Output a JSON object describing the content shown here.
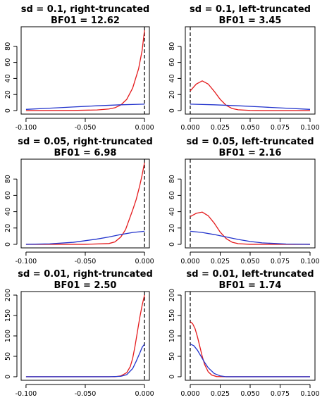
{
  "colors": {
    "posterior": "#e41a1c",
    "prior": "#2233cc"
  },
  "chart_data": [
    {
      "type": "line",
      "title": "sd = 0.1, right-truncated",
      "subtitle": "BF01 = 12.62",
      "xlim": [
        -0.1,
        0.0
      ],
      "ylim": [
        0,
        100
      ],
      "xticks": [
        -0.1,
        -0.05,
        0.0
      ],
      "xtick_labels": [
        "-0.100",
        "-0.050",
        "0.000"
      ],
      "yticks": [
        0,
        20,
        40,
        60,
        80
      ],
      "ytick_labels": [
        "0",
        "20",
        "40",
        "60",
        "80"
      ],
      "vline_x": 0.0,
      "series": [
        {
          "color": "#e41a1c",
          "x": [
            -0.1,
            -0.06,
            -0.04,
            -0.03,
            -0.025,
            -0.02,
            -0.015,
            -0.01,
            -0.005,
            -0.002,
            0.0
          ],
          "y": [
            0.0,
            0.2,
            0.8,
            2.0,
            3.5,
            7.0,
            14.0,
            28.0,
            52.0,
            75.0,
            100.0
          ]
        },
        {
          "color": "#2233cc",
          "x": [
            -0.1,
            -0.08,
            -0.06,
            -0.04,
            -0.02,
            0.0
          ],
          "y": [
            1.5,
            3.0,
            4.5,
            6.0,
            7.2,
            8.0
          ]
        }
      ]
    },
    {
      "type": "line",
      "title": "sd = 0.1, left-truncated",
      "subtitle": "BF01 = 3.45",
      "xlim": [
        0.0,
        0.1
      ],
      "ylim": [
        0,
        100
      ],
      "xticks": [
        0.0,
        0.025,
        0.05,
        0.075,
        0.1
      ],
      "xtick_labels": [
        "0.000",
        "0.025",
        "0.050",
        "0.075",
        "0.100"
      ],
      "yticks": [
        0,
        20,
        40,
        60,
        80
      ],
      "ytick_labels": [
        "0",
        "20",
        "40",
        "60",
        "80"
      ],
      "vline_x": 0.0,
      "series": [
        {
          "color": "#e41a1c",
          "x": [
            0.0,
            0.005,
            0.01,
            0.015,
            0.02,
            0.025,
            0.03,
            0.035,
            0.04,
            0.05,
            0.06,
            0.08,
            0.1
          ],
          "y": [
            24.5,
            33.0,
            37.0,
            33.0,
            24.0,
            14.0,
            6.5,
            2.5,
            1.0,
            0.2,
            0.0,
            0.0,
            0.0
          ]
        },
        {
          "color": "#2233cc",
          "x": [
            0.0,
            0.02,
            0.04,
            0.06,
            0.08,
            0.1
          ],
          "y": [
            8.0,
            7.2,
            6.0,
            4.5,
            3.0,
            1.5
          ]
        }
      ]
    },
    {
      "type": "line",
      "title": "sd = 0.05, right-truncated",
      "subtitle": "BF01 = 6.98",
      "xlim": [
        -0.1,
        0.0
      ],
      "ylim": [
        0,
        100
      ],
      "xticks": [
        -0.1,
        -0.05,
        0.0
      ],
      "xtick_labels": [
        "-0.100",
        "-0.050",
        "0.000"
      ],
      "yticks": [
        0,
        20,
        40,
        60,
        80
      ],
      "ytick_labels": [
        "0",
        "20",
        "40",
        "60",
        "80"
      ],
      "vline_x": 0.0,
      "series": [
        {
          "color": "#e41a1c",
          "x": [
            -0.1,
            -0.05,
            -0.03,
            -0.025,
            -0.02,
            -0.016,
            -0.013,
            -0.01,
            -0.007,
            -0.004,
            -0.002,
            0.0
          ],
          "y": [
            0.0,
            0.0,
            1.0,
            3.0,
            9.0,
            18.0,
            30.0,
            42.0,
            55.0,
            72.0,
            85.0,
            100.0
          ]
        },
        {
          "color": "#2233cc",
          "x": [
            -0.1,
            -0.08,
            -0.06,
            -0.04,
            -0.03,
            -0.02,
            -0.01,
            0.0
          ],
          "y": [
            0.0,
            0.6,
            2.5,
            6.5,
            9.0,
            12.0,
            14.5,
            16.0
          ]
        }
      ]
    },
    {
      "type": "line",
      "title": "sd = 0.05, left-truncated",
      "subtitle": "BF01 = 2.16",
      "xlim": [
        0.0,
        0.1
      ],
      "ylim": [
        0,
        100
      ],
      "xticks": [
        0.0,
        0.025,
        0.05,
        0.075,
        0.1
      ],
      "xtick_labels": [
        "0.000",
        "0.025",
        "0.050",
        "0.075",
        "0.100"
      ],
      "yticks": [
        0,
        20,
        40,
        60,
        80
      ],
      "ytick_labels": [
        "0",
        "20",
        "40",
        "60",
        "80"
      ],
      "vline_x": 0.0,
      "series": [
        {
          "color": "#e41a1c",
          "x": [
            0.0,
            0.005,
            0.01,
            0.015,
            0.02,
            0.025,
            0.03,
            0.035,
            0.04,
            0.05,
            0.07,
            0.1
          ],
          "y": [
            34.0,
            38.0,
            39.5,
            35.0,
            26.0,
            15.0,
            7.0,
            2.5,
            0.8,
            0.0,
            0.0,
            0.0
          ]
        },
        {
          "color": "#2233cc",
          "x": [
            0.0,
            0.01,
            0.02,
            0.03,
            0.04,
            0.05,
            0.06,
            0.08,
            0.1
          ],
          "y": [
            16.0,
            14.5,
            12.0,
            9.0,
            6.0,
            3.5,
            1.8,
            0.4,
            0.0
          ]
        }
      ]
    },
    {
      "type": "line",
      "title": "sd = 0.01, right-truncated",
      "subtitle": "BF01 = 2.50",
      "xlim": [
        -0.1,
        0.0
      ],
      "ylim": [
        0,
        200
      ],
      "xticks": [
        -0.1,
        -0.05,
        0.0
      ],
      "xtick_labels": [
        "-0.100",
        "-0.050",
        "0.000"
      ],
      "yticks": [
        0,
        50,
        100,
        150,
        200
      ],
      "ytick_labels": [
        "0",
        "50",
        "100",
        "150",
        "200"
      ],
      "vline_x": 0.0,
      "series": [
        {
          "color": "#e41a1c",
          "x": [
            -0.1,
            -0.025,
            -0.02,
            -0.015,
            -0.012,
            -0.01,
            -0.008,
            -0.006,
            -0.004,
            -0.002,
            0.0
          ],
          "y": [
            0.0,
            0.0,
            2.0,
            10.0,
            25.0,
            45.0,
            75.0,
            110.0,
            145.0,
            175.0,
            200.0
          ]
        },
        {
          "color": "#2233cc",
          "x": [
            -0.1,
            -0.03,
            -0.02,
            -0.015,
            -0.01,
            -0.007,
            -0.004,
            -0.002,
            0.0
          ],
          "y": [
            0.0,
            0.0,
            1.0,
            5.0,
            20.0,
            38.0,
            58.0,
            72.0,
            80.0
          ]
        }
      ]
    },
    {
      "type": "line",
      "title": "sd = 0.01, left-truncated",
      "subtitle": "BF01 = 1.74",
      "xlim": [
        0.0,
        0.1
      ],
      "ylim": [
        0,
        200
      ],
      "xticks": [
        0.0,
        0.025,
        0.05,
        0.075,
        0.1
      ],
      "xtick_labels": [
        "0.000",
        "0.025",
        "0.050",
        "0.075",
        "0.100"
      ],
      "yticks": [
        0,
        50,
        100,
        150,
        200
      ],
      "ytick_labels": [
        "0",
        "50",
        "100",
        "150",
        "200"
      ],
      "vline_x": 0.0,
      "series": [
        {
          "color": "#e41a1c",
          "x": [
            0.0,
            0.002,
            0.004,
            0.006,
            0.008,
            0.01,
            0.012,
            0.015,
            0.018,
            0.022,
            0.03,
            0.1
          ],
          "y": [
            135.0,
            130.0,
            118.0,
            98.0,
            74.0,
            50.0,
            30.0,
            12.0,
            4.0,
            0.5,
            0.0,
            0.0
          ]
        },
        {
          "color": "#2233cc",
          "x": [
            0.0,
            0.003,
            0.006,
            0.009,
            0.012,
            0.015,
            0.02,
            0.025,
            0.03,
            0.1
          ],
          "y": [
            80.0,
            76.0,
            65.0,
            50.0,
            35.0,
            22.0,
            8.0,
            2.0,
            0.0,
            0.0
          ]
        }
      ]
    }
  ]
}
